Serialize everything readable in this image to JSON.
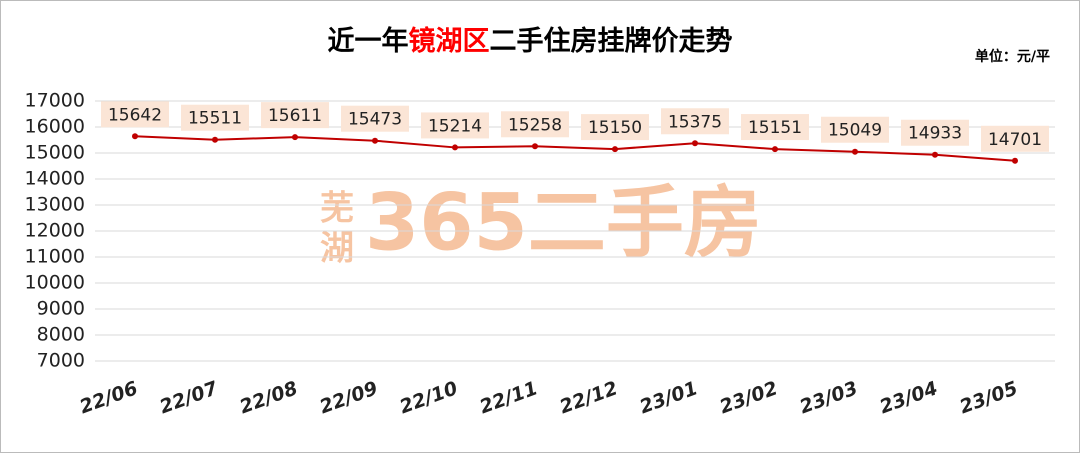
{
  "chart_data": {
    "type": "line",
    "title_parts": [
      "近一年",
      "镜湖区",
      "二手住房挂牌价走势"
    ],
    "title_colors": [
      "#000000",
      "#ff0000",
      "#000000"
    ],
    "unit": "单位：元/平",
    "watermark": [
      "芜",
      "湖",
      "365二手房"
    ],
    "categories": [
      "22/06",
      "22/07",
      "22/08",
      "22/09",
      "22/10",
      "22/11",
      "22/12",
      "23/01",
      "23/02",
      "23/03",
      "23/04",
      "23/05"
    ],
    "series": [
      {
        "name": "挂牌价",
        "color": "#c00000",
        "values": [
          15642,
          15511,
          15611,
          15473,
          15214,
          15258,
          15150,
          15375,
          15151,
          15049,
          14933,
          14701
        ]
      }
    ],
    "ylim": [
      7000,
      17000
    ],
    "yticks": [
      7000,
      8000,
      9000,
      10000,
      11000,
      12000,
      13000,
      14000,
      15000,
      16000,
      17000
    ],
    "grid": true
  }
}
